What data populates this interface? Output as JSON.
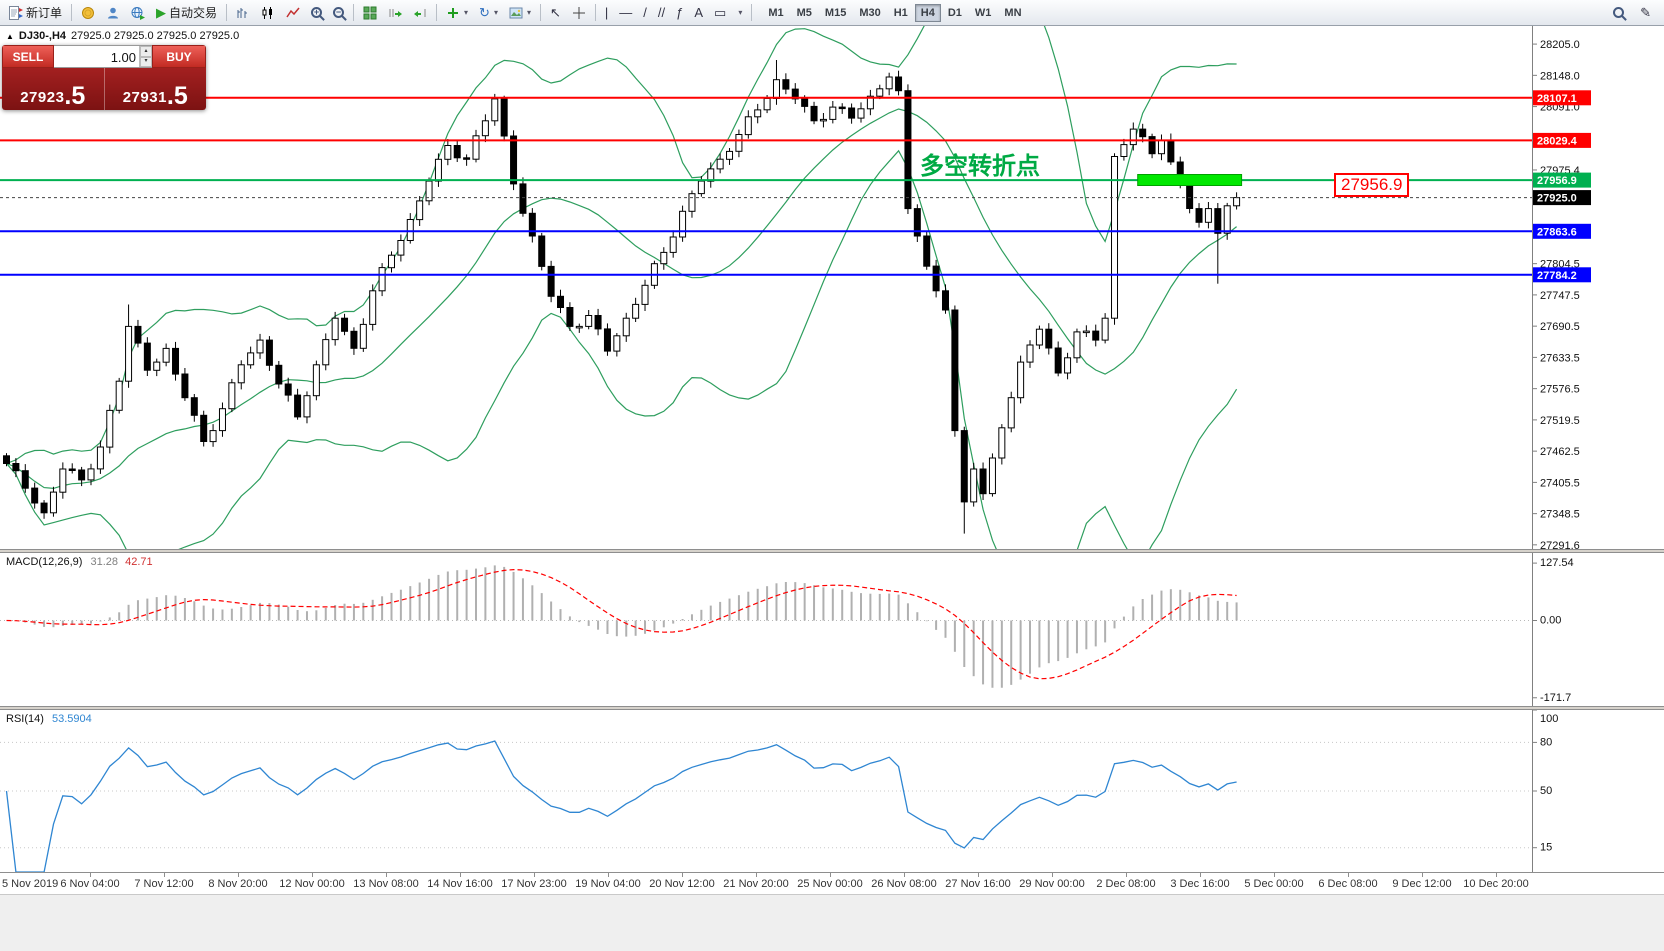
{
  "toolbar": {
    "new_order_label": "新订单",
    "autotrading_label": "自动交易",
    "timeframes": [
      "M1",
      "M5",
      "M15",
      "M30",
      "H1",
      "H4",
      "D1",
      "W1",
      "MN"
    ],
    "active_timeframe": "H4"
  },
  "window": {
    "symbol_title": "DJ30-,H4",
    "ohlc": "27925.0 27925.0 27925.0 27925.0"
  },
  "one_click": {
    "sell_label": "SELL",
    "buy_label": "BUY",
    "volume": "1.00",
    "sell_price_main": "27923",
    "sell_price_frac": ".5",
    "buy_price_main": "27931",
    "buy_price_frac": ".5"
  },
  "price_chart": {
    "annotation": "多空转折点",
    "callout_label": "27956.9",
    "current_price": 27925.0,
    "current_price_label": "27925.0",
    "hlines": [
      {
        "price": 28107.1,
        "label": "28107.1",
        "color": "#ff0000"
      },
      {
        "price": 28029.4,
        "label": "28029.4",
        "color": "#ff0000"
      },
      {
        "price": 27956.9,
        "label": "27956.9",
        "color": "#00b050"
      },
      {
        "price": 27863.6,
        "label": "27863.6",
        "color": "#0000ff"
      },
      {
        "price": 27784.2,
        "label": "27784.2",
        "color": "#0000ff"
      }
    ],
    "axis_ticks": [
      {
        "v": 28205.0,
        "label": "28205.0"
      },
      {
        "v": 28148.0,
        "label": "28148.0"
      },
      {
        "v": 28091.0,
        "label": "28091.0"
      },
      {
        "v": 27975.4,
        "label": "27975.4"
      },
      {
        "v": 27804.5,
        "label": "27804.5"
      },
      {
        "v": 27747.5,
        "label": "27747.5"
      },
      {
        "v": 27690.5,
        "label": "27690.5"
      },
      {
        "v": 27633.5,
        "label": "27633.5"
      },
      {
        "v": 27576.5,
        "label": "27576.5"
      },
      {
        "v": 27519.5,
        "label": "27519.5"
      },
      {
        "v": 27462.5,
        "label": "27462.5"
      },
      {
        "v": 27405.5,
        "label": "27405.5"
      },
      {
        "v": 27348.5,
        "label": "27348.5"
      },
      {
        "v": 27291.6,
        "label": "27291.6"
      }
    ],
    "highlight_bar": {
      "from_index": 121,
      "to_index": 131,
      "price": 27957
    },
    "candle_count": 132,
    "candles_anchors": [
      [
        0,
        27440
      ],
      [
        2,
        27395
      ],
      [
        4,
        27350
      ],
      [
        6,
        27430
      ],
      [
        8,
        27410
      ],
      [
        10,
        27470
      ],
      [
        12,
        27590
      ],
      [
        13,
        27690
      ],
      [
        15,
        27610
      ],
      [
        17,
        27650
      ],
      [
        19,
        27560
      ],
      [
        21,
        27480
      ],
      [
        23,
        27540
      ],
      [
        25,
        27620
      ],
      [
        27,
        27665
      ],
      [
        29,
        27585
      ],
      [
        31,
        27525
      ],
      [
        33,
        27620
      ],
      [
        35,
        27705
      ],
      [
        37,
        27650
      ],
      [
        39,
        27755
      ],
      [
        41,
        27820
      ],
      [
        43,
        27885
      ],
      [
        45,
        27955
      ],
      [
        47,
        28020
      ],
      [
        49,
        27995
      ],
      [
        51,
        28065
      ],
      [
        52,
        28105
      ],
      [
        54,
        27950
      ],
      [
        56,
        27855
      ],
      [
        58,
        27745
      ],
      [
        60,
        27690
      ],
      [
        62,
        27710
      ],
      [
        64,
        27645
      ],
      [
        66,
        27705
      ],
      [
        68,
        27765
      ],
      [
        70,
        27825
      ],
      [
        72,
        27900
      ],
      [
        74,
        27955
      ],
      [
        76,
        27995
      ],
      [
        78,
        28040
      ],
      [
        80,
        28085
      ],
      [
        82,
        28140
      ],
      [
        84,
        28105
      ],
      [
        86,
        28065
      ],
      [
        88,
        28090
      ],
      [
        90,
        28070
      ],
      [
        92,
        28110
      ],
      [
        94,
        28145
      ],
      [
        95,
        28120
      ],
      [
        96,
        27905
      ],
      [
        97,
        27855
      ],
      [
        98,
        27800
      ],
      [
        99,
        27755
      ],
      [
        100,
        27720
      ],
      [
        101,
        27500
      ],
      [
        102,
        27370
      ],
      [
        103,
        27430
      ],
      [
        104,
        27385
      ],
      [
        105,
        27450
      ],
      [
        106,
        27505
      ],
      [
        107,
        27560
      ],
      [
        108,
        27625
      ],
      [
        110,
        27685
      ],
      [
        112,
        27605
      ],
      [
        114,
        27680
      ],
      [
        116,
        27665
      ],
      [
        117,
        27705
      ],
      [
        118,
        28000
      ],
      [
        120,
        28050
      ],
      [
        122,
        28005
      ],
      [
        123,
        28030
      ],
      [
        124,
        27990
      ],
      [
        126,
        27905
      ],
      [
        127,
        27880
      ],
      [
        128,
        27905
      ],
      [
        129,
        27860
      ],
      [
        130,
        27910
      ],
      [
        131,
        27925
      ]
    ],
    "wick_overrides": [
      [
        13,
        "high",
        27730
      ],
      [
        82,
        "high",
        28176
      ],
      [
        102,
        "low",
        27312
      ],
      [
        129,
        "low",
        27768
      ]
    ],
    "bollinger": {
      "period": 20,
      "deviation": 2
    },
    "colors": {
      "up_candle": "#ffffff",
      "down_candle": "#000000",
      "outline": "#000000",
      "bollinger": "#2e9e5e",
      "highlight": "#00e800",
      "annotation_green": "#00aa44",
      "callout_red": "#ff0000",
      "current_badge": "#000000"
    }
  },
  "macd": {
    "header": "MACD(12,26,9)",
    "value_main": "31.28",
    "value_signal": "42.71",
    "axis": [
      {
        "v": 127.54,
        "label": "127.54"
      },
      {
        "v": 0,
        "label": "0.00"
      },
      {
        "v": -171.7,
        "label": "-171.7"
      }
    ],
    "colors": {
      "histogram": "#b0b0b0",
      "signal": "#ff0000"
    }
  },
  "rsi": {
    "header": "RSI(14)",
    "value": "53.5904",
    "levels": [
      {
        "v": 100,
        "label": "100"
      },
      {
        "v": 80,
        "label": "80"
      },
      {
        "v": 50,
        "label": "50"
      },
      {
        "v": 15,
        "label": "15"
      }
    ],
    "colors": {
      "line": "#2f86d2"
    }
  },
  "time_axis": [
    "5 Nov 2019",
    "6 Nov 04:00",
    "7 Nov 12:00",
    "8 Nov 20:00",
    "12 Nov 00:00",
    "13 Nov 08:00",
    "14 Nov 16:00",
    "17 Nov 23:00",
    "19 Nov 04:00",
    "20 Nov 12:00",
    "21 Nov 20:00",
    "25 Nov 00:00",
    "26 Nov 08:00",
    "27 Nov 16:00",
    "29 Nov 00:00",
    "2 Dec 08:00",
    "3 Dec 16:00",
    "5 Dec 00:00",
    "6 Dec 08:00",
    "9 Dec 12:00",
    "10 Dec 20:00"
  ]
}
